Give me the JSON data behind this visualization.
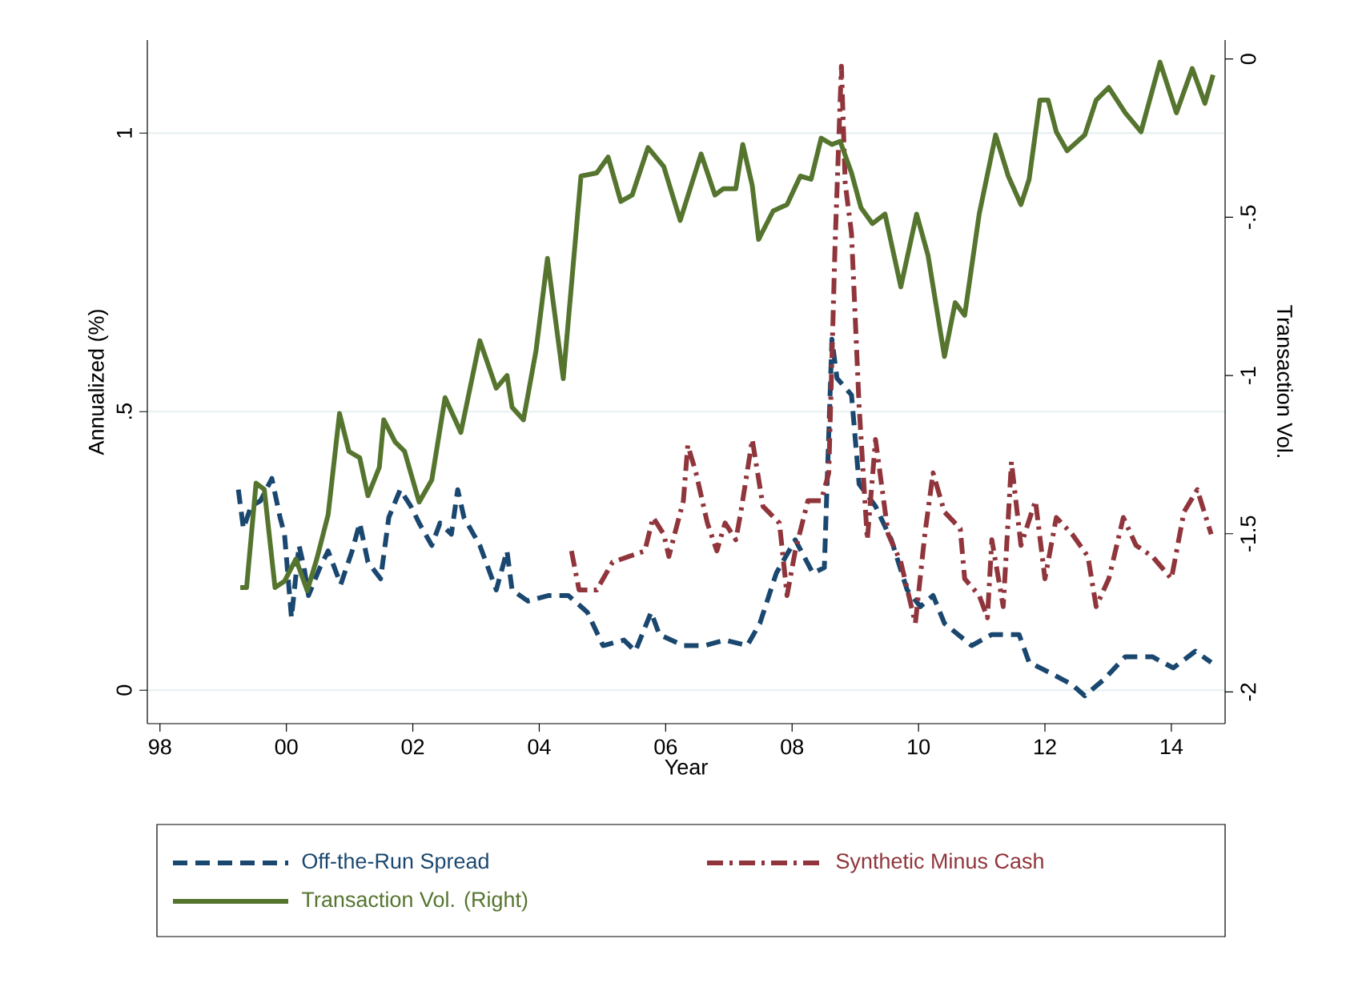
{
  "chart_data": {
    "type": "line",
    "xlabel": "Year",
    "ylabel": "Annualized (%)",
    "y2label": "Transaction Vol.",
    "xlim": [
      1997.8,
      2014.85
    ],
    "ylim": [
      -0.06,
      1.167
    ],
    "y2lim": [
      -2.1,
      0.06
    ],
    "xticks": [
      {
        "value": 1998,
        "label": "98"
      },
      {
        "value": 2000,
        "label": "00"
      },
      {
        "value": 2002,
        "label": "02"
      },
      {
        "value": 2004,
        "label": "04"
      },
      {
        "value": 2006,
        "label": "06"
      },
      {
        "value": 2008,
        "label": "08"
      },
      {
        "value": 2010,
        "label": "10"
      },
      {
        "value": 2012,
        "label": "12"
      },
      {
        "value": 2014,
        "label": "14"
      }
    ],
    "yticks": [
      0,
      {
        "value": 0.5,
        "label": ".5"
      },
      1
    ],
    "y2ticks": [
      {
        "value": -2,
        "label": "-2"
      },
      {
        "value": -1.5,
        "label": "-1.5"
      },
      {
        "value": -1,
        "label": "-1"
      },
      {
        "value": -0.5,
        "label": "-.5"
      },
      {
        "value": 0,
        "label": "0"
      }
    ],
    "grid": "y",
    "legend": "bottom",
    "series": [
      {
        "name": "Off-the-Run Spread",
        "color": "#1a476f",
        "line_style": "dashed",
        "x": [
          1999.24,
          1999.32,
          1999.44,
          1999.59,
          1999.77,
          1999.9,
          1999.97,
          2000.08,
          2000.2,
          2000.28,
          2000.35,
          2000.53,
          2000.66,
          2000.86,
          2001.04,
          2001.16,
          2001.29,
          2001.49,
          2001.62,
          2001.8,
          2001.97,
          2002.1,
          2002.3,
          2002.43,
          2002.61,
          2002.71,
          2002.81,
          2003.06,
          2003.32,
          2003.49,
          2003.57,
          2003.82,
          2004.15,
          2004.46,
          2004.76,
          2005.01,
          2005.34,
          2005.52,
          2005.77,
          2005.9,
          2006.28,
          2006.61,
          2006.94,
          2007.29,
          2007.49,
          2007.75,
          2008.05,
          2008.33,
          2008.51,
          2008.63,
          2008.71,
          2008.94,
          2009.06,
          2009.32,
          2009.57,
          2009.82,
          2010.03,
          2010.23,
          2010.41,
          2010.84,
          2011.16,
          2011.59,
          2011.75,
          2012.1,
          2012.43,
          2012.63,
          2012.94,
          2013.27,
          2013.7,
          2014.03,
          2014.38,
          2014.63
        ],
        "values": [
          0.36,
          0.29,
          0.33,
          0.34,
          0.38,
          0.31,
          0.28,
          0.13,
          0.26,
          0.22,
          0.17,
          0.22,
          0.25,
          0.19,
          0.25,
          0.3,
          0.23,
          0.2,
          0.31,
          0.36,
          0.33,
          0.3,
          0.26,
          0.3,
          0.28,
          0.36,
          0.31,
          0.26,
          0.18,
          0.25,
          0.18,
          0.16,
          0.17,
          0.17,
          0.14,
          0.08,
          0.09,
          0.07,
          0.14,
          0.1,
          0.08,
          0.08,
          0.09,
          0.08,
          0.12,
          0.21,
          0.27,
          0.21,
          0.22,
          0.63,
          0.56,
          0.53,
          0.37,
          0.33,
          0.27,
          0.18,
          0.15,
          0.17,
          0.12,
          0.08,
          0.1,
          0.1,
          0.05,
          0.03,
          0.01,
          -0.01,
          0.02,
          0.06,
          0.06,
          0.04,
          0.07,
          0.05
        ]
      },
      {
        "name": "Synthetic Minus Cash",
        "color": "#90353b",
        "line_style": "dashdot",
        "x": [
          2004.51,
          2004.63,
          2004.91,
          2005.16,
          2005.42,
          2005.67,
          2005.8,
          2005.97,
          2006.05,
          2006.28,
          2006.35,
          2006.48,
          2006.66,
          2006.81,
          2006.94,
          2007.11,
          2007.19,
          2007.37,
          2007.54,
          2007.8,
          2007.92,
          2008.05,
          2008.25,
          2008.46,
          2008.58,
          2008.68,
          2008.78,
          2008.84,
          2008.94,
          2009.06,
          2009.19,
          2009.32,
          2009.52,
          2009.72,
          2009.95,
          2010.1,
          2010.23,
          2010.41,
          2010.66,
          2010.73,
          2010.96,
          2011.09,
          2011.16,
          2011.34,
          2011.47,
          2011.62,
          2011.85,
          2012.0,
          2012.18,
          2012.43,
          2012.68,
          2012.81,
          2013.01,
          2013.24,
          2013.44,
          2013.7,
          2014.0,
          2014.2,
          2014.41,
          2014.63
        ],
        "values": [
          0.25,
          0.18,
          0.18,
          0.23,
          0.24,
          0.25,
          0.31,
          0.28,
          0.24,
          0.34,
          0.44,
          0.39,
          0.3,
          0.25,
          0.3,
          0.27,
          0.32,
          0.45,
          0.33,
          0.3,
          0.17,
          0.25,
          0.34,
          0.34,
          0.39,
          0.8,
          1.12,
          0.91,
          0.82,
          0.51,
          0.27,
          0.45,
          0.28,
          0.23,
          0.12,
          0.28,
          0.39,
          0.32,
          0.29,
          0.2,
          0.17,
          0.13,
          0.27,
          0.15,
          0.41,
          0.26,
          0.34,
          0.2,
          0.31,
          0.28,
          0.24,
          0.15,
          0.2,
          0.31,
          0.26,
          0.24,
          0.2,
          0.32,
          0.36,
          0.28
        ]
      },
      {
        "name": "Transaction Vol. (Right)",
        "color": "#55752f",
        "line_style": "solid",
        "axis": "y2",
        "x": [
          1999.27,
          1999.37,
          1999.52,
          1999.65,
          1999.82,
          1999.97,
          2000.15,
          2000.33,
          2000.48,
          2000.66,
          2000.84,
          2000.99,
          2001.16,
          2001.29,
          2001.47,
          2001.54,
          2001.72,
          2001.87,
          2002.1,
          2002.3,
          2002.51,
          2002.76,
          2003.06,
          2003.32,
          2003.49,
          2003.57,
          2003.75,
          2003.95,
          2004.13,
          2004.38,
          2004.66,
          2004.91,
          2005.09,
          2005.29,
          2005.47,
          2005.72,
          2005.97,
          2006.23,
          2006.56,
          2006.78,
          2006.91,
          2007.11,
          2007.22,
          2007.37,
          2007.47,
          2007.7,
          2007.92,
          2008.13,
          2008.3,
          2008.46,
          2008.63,
          2008.76,
          2008.94,
          2009.09,
          2009.27,
          2009.47,
          2009.72,
          2009.97,
          2010.15,
          2010.41,
          2010.58,
          2010.73,
          2010.96,
          2011.22,
          2011.42,
          2011.62,
          2011.75,
          2011.92,
          2012.05,
          2012.18,
          2012.35,
          2012.63,
          2012.81,
          2013.01,
          2013.27,
          2013.52,
          2013.82,
          2014.08,
          2014.33,
          2014.53,
          2014.66
        ],
        "values": [
          -1.67,
          -1.67,
          -1.34,
          -1.36,
          -1.67,
          -1.65,
          -1.58,
          -1.68,
          -1.58,
          -1.44,
          -1.12,
          -1.24,
          -1.26,
          -1.38,
          -1.29,
          -1.14,
          -1.21,
          -1.24,
          -1.4,
          -1.33,
          -1.07,
          -1.18,
          -0.89,
          -1.04,
          -1.0,
          -1.1,
          -1.14,
          -0.92,
          -0.63,
          -1.01,
          -0.37,
          -0.36,
          -0.31,
          -0.45,
          -0.43,
          -0.28,
          -0.34,
          -0.51,
          -0.3,
          -0.43,
          -0.41,
          -0.41,
          -0.27,
          -0.4,
          -0.57,
          -0.48,
          -0.46,
          -0.37,
          -0.38,
          -0.25,
          -0.27,
          -0.26,
          -0.36,
          -0.47,
          -0.52,
          -0.49,
          -0.72,
          -0.49,
          -0.62,
          -0.94,
          -0.77,
          -0.81,
          -0.49,
          -0.24,
          -0.37,
          -0.46,
          -0.38,
          -0.13,
          -0.13,
          -0.23,
          -0.29,
          -0.24,
          -0.13,
          -0.09,
          -0.17,
          -0.23,
          -0.01,
          -0.17,
          -0.03,
          -0.14,
          -0.05
        ]
      }
    ]
  }
}
